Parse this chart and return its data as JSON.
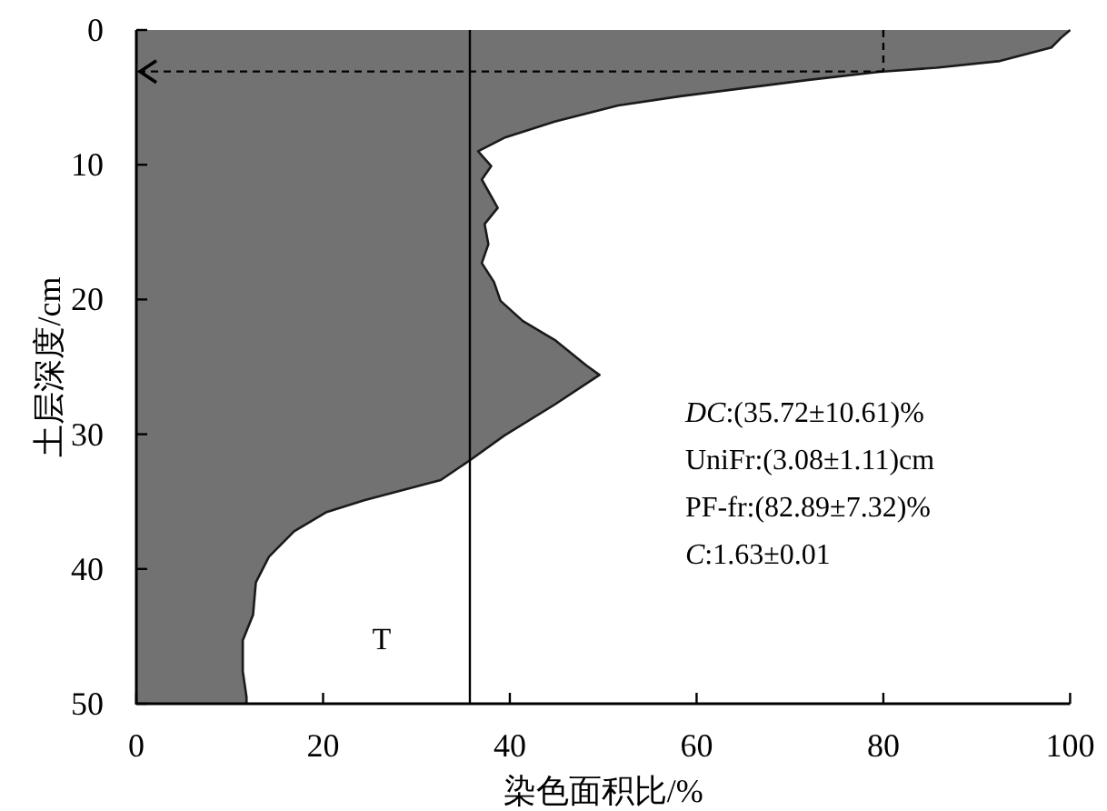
{
  "chart_data": {
    "type": "area",
    "orientation": "horizontal",
    "xlabel": "染色面积比/%",
    "ylabel": "土层深度/cm",
    "x": [
      0,
      0.6,
      1.3,
      2.3,
      2.8,
      3.1,
      3.7,
      4.9,
      5.6,
      6.8,
      8.0,
      9.0,
      10.1,
      11.1,
      13.2,
      14.4,
      15.9,
      17.3,
      18.7,
      20.1,
      21.6,
      23.0,
      24.9,
      25.6,
      27.8,
      30.1,
      31.8,
      33.4,
      34.9,
      35.8,
      37.2,
      39.1,
      41.0,
      43.4,
      45.3,
      47.6,
      49.5,
      50
    ],
    "series": [
      {
        "color": "#727272",
        "values": [
          100,
          99,
          98,
          92.5,
          85.7,
          79.6,
          72,
          58.4,
          51.6,
          44.8,
          39.4,
          36.6,
          38,
          37,
          38.7,
          37.3,
          37.7,
          37,
          38.3,
          39,
          41.4,
          44.8,
          48.2,
          49.6,
          44.8,
          39.4,
          36.0,
          32.6,
          24.4,
          20.3,
          16.9,
          14.2,
          12.8,
          12.5,
          11.4,
          11.4,
          11.8,
          11.8
        ]
      },
      {
        "type": "line",
        "color": "#000000",
        "line_style": "dashed",
        "x": [
          0,
          3.08
        ],
        "values": [
          80,
          80
        ]
      }
    ],
    "xlim": [
      0,
      100
    ],
    "xticks": [
      0,
      20,
      40,
      60,
      80,
      100
    ],
    "ylim": [
      50,
      0
    ],
    "yticks": [
      0,
      10,
      20,
      30,
      40,
      50
    ],
    "ref_lines": [
      {
        "axis": "x",
        "value": 35.72,
        "color": "#000000"
      },
      {
        "axis": "y",
        "value": 3.08,
        "line_style": "dashed",
        "color": "#000000"
      }
    ],
    "annotations": [
      "*DC*:(35.72±10.61)%",
      "UniFr:(3.08±1.11)cm",
      "PF-fr:(82.89±7.32)%",
      "*C*:1.63±0.01",
      "T"
    ],
    "grid": false
  }
}
